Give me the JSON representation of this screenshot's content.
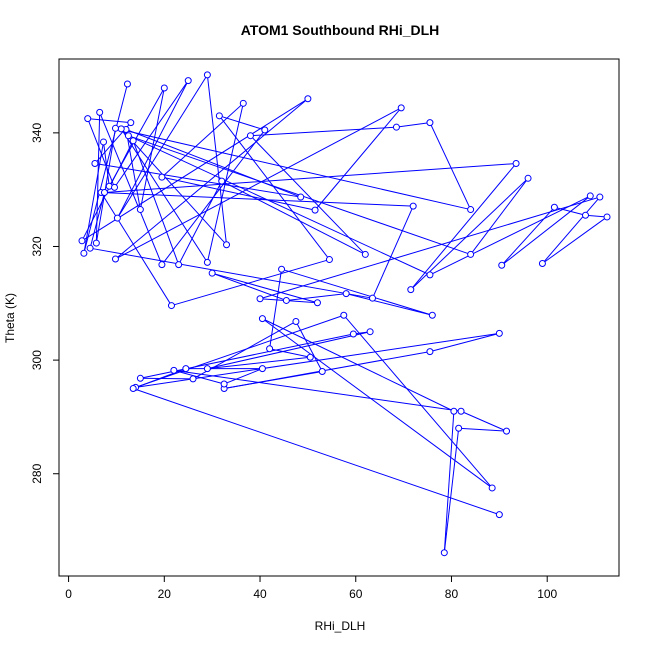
{
  "chart_data": {
    "type": "line",
    "title": "ATOM1 Southbound RHi_DLH",
    "xlabel": "RHi_DLH",
    "ylabel": "Theta (K)",
    "xlim": [
      -2,
      115
    ],
    "ylim": [
      262,
      353
    ],
    "xticks": [
      0,
      20,
      40,
      60,
      80,
      100
    ],
    "yticks": [
      280,
      300,
      320,
      340
    ],
    "grid": false,
    "legend": "none",
    "color": "#0000ff",
    "marker": "open-circle",
    "series": [
      {
        "points": [
          [
            12.3,
            348.6
          ],
          [
            3.2,
            318.8
          ],
          [
            7.3,
            338.4
          ],
          [
            8.5,
            330.6
          ],
          [
            20.0,
            347.9
          ],
          [
            15.0,
            326.5
          ],
          [
            12.0,
            340.6
          ],
          [
            48.5,
            328.7
          ],
          [
            5.5,
            334.6
          ],
          [
            13.0,
            341.8
          ],
          [
            4.0,
            342.5
          ],
          [
            9.6,
            330.4
          ],
          [
            25.0,
            349.2
          ],
          [
            10.2,
            325.0
          ],
          [
            29.0,
            350.2
          ],
          [
            33.0,
            320.3
          ],
          [
            11.0,
            340.7
          ],
          [
            29.0,
            317.2
          ],
          [
            36.5,
            345.2
          ],
          [
            19.5,
            332.2
          ],
          [
            51.5,
            326.4
          ],
          [
            69.5,
            344.4
          ],
          [
            9.8,
            317.8
          ],
          [
            50.0,
            346.0
          ],
          [
            2.8,
            321.0
          ],
          [
            13.5,
            338.6
          ],
          [
            23.0,
            316.8
          ],
          [
            32.0,
            331.5
          ],
          [
            62.0,
            318.6
          ],
          [
            38.0,
            339.5
          ],
          [
            68.5,
            341.0
          ],
          [
            75.5,
            341.8
          ],
          [
            84.0,
            326.5
          ],
          [
            9.8,
            340.8
          ],
          [
            5.8,
            320.6
          ],
          [
            6.5,
            343.6
          ],
          [
            19.5,
            316.8
          ],
          [
            41.0,
            340.5
          ],
          [
            31.5,
            343.0
          ],
          [
            54.5,
            317.7
          ],
          [
            21.5,
            309.6
          ],
          [
            6.8,
            329.5
          ],
          [
            72.0,
            327.1
          ],
          [
            63.5,
            310.9
          ],
          [
            4.5,
            319.7
          ],
          [
            7.5,
            329.5
          ],
          [
            93.5,
            334.6
          ],
          [
            71.5,
            312.4
          ],
          [
            96.0,
            332.0
          ],
          [
            84.0,
            318.6
          ],
          [
            12.5,
            339.5
          ],
          [
            75.5,
            315.0
          ],
          [
            109.0,
            328.9
          ],
          [
            90.5,
            316.7
          ],
          [
            101.5,
            326.9
          ],
          [
            108.0,
            325.5
          ],
          [
            112.5,
            325.2
          ],
          [
            99.0,
            317.0
          ],
          [
            111.0,
            328.7
          ],
          [
            40.0,
            310.8
          ],
          [
            52.0,
            310.1
          ],
          [
            30.0,
            315.3
          ],
          [
            45.5,
            310.5
          ],
          [
            58.0,
            311.7
          ],
          [
            76.0,
            307.9
          ],
          [
            44.5,
            316.0
          ],
          [
            42.0,
            302.0
          ],
          [
            50.5,
            300.5
          ],
          [
            29.0,
            298.5
          ],
          [
            63.0,
            305.0
          ],
          [
            59.5,
            304.6
          ],
          [
            15.0,
            296.8
          ],
          [
            26.0,
            296.7
          ],
          [
            47.5,
            306.8
          ],
          [
            53.0,
            298.0
          ],
          [
            32.5,
            295.0
          ],
          [
            75.5,
            301.5
          ],
          [
            90.0,
            304.7
          ],
          [
            14.0,
            295.2
          ],
          [
            57.5,
            307.9
          ],
          [
            88.5,
            277.5
          ],
          [
            40.5,
            307.3
          ],
          [
            80.5,
            291.0
          ],
          [
            78.5,
            266.1
          ],
          [
            81.5,
            288.0
          ],
          [
            91.5,
            287.5
          ],
          [
            82.0,
            291.0
          ],
          [
            22.0,
            298.2
          ],
          [
            32.5,
            295.8
          ],
          [
            40.5,
            298.5
          ],
          [
            24.5,
            298.5
          ],
          [
            13.5,
            295.0
          ],
          [
            90.0,
            272.8
          ]
        ]
      }
    ]
  }
}
